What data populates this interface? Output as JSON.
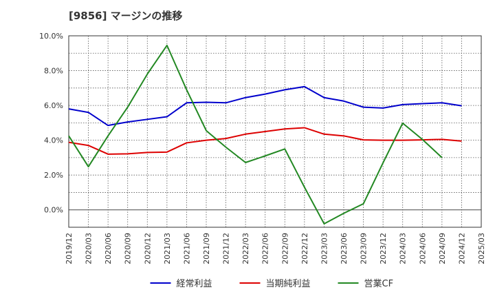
{
  "chart_data": {
    "type": "line",
    "title": "[9856]  マージンの推移",
    "x": [
      "2019/12",
      "2020/03",
      "2020/06",
      "2020/09",
      "2020/12",
      "2021/03",
      "2021/06",
      "2021/09",
      "2021/12",
      "2022/03",
      "2022/06",
      "2022/09",
      "2022/12",
      "2023/03",
      "2023/06",
      "2023/09",
      "2023/12",
      "2024/03",
      "2024/06",
      "2024/09",
      "2024/12",
      "2025/03"
    ],
    "ylim": [
      -1.0,
      10.0
    ],
    "yticks": [
      0.0,
      2.0,
      4.0,
      6.0,
      8.0,
      10.0
    ],
    "ytick_labels": [
      "0.0%",
      "2.0%",
      "4.0%",
      "6.0%",
      "8.0%",
      "10.0%"
    ],
    "grid": true,
    "legend_position": "bottom",
    "series": [
      {
        "name": "経常利益",
        "color": "#0000cc",
        "values": [
          5.8,
          5.6,
          4.85,
          5.05,
          5.2,
          5.35,
          6.15,
          6.18,
          6.15,
          6.45,
          6.65,
          6.9,
          7.08,
          6.45,
          6.25,
          5.9,
          5.85,
          6.05,
          6.1,
          6.15,
          5.98,
          null
        ]
      },
      {
        "name": "当期純利益",
        "color": "#dd0000",
        "values": [
          3.88,
          3.7,
          3.2,
          3.22,
          3.3,
          3.32,
          3.85,
          4.0,
          4.1,
          4.35,
          4.5,
          4.65,
          4.72,
          4.35,
          4.25,
          4.02,
          4.0,
          4.0,
          4.02,
          4.05,
          3.95,
          null
        ]
      },
      {
        "name": "営業CF",
        "color": "#228822",
        "values": [
          4.25,
          2.48,
          4.25,
          5.9,
          7.8,
          9.45,
          6.9,
          4.55,
          3.6,
          2.72,
          3.1,
          3.5,
          1.3,
          -0.8,
          -0.2,
          0.35,
          2.7,
          4.98,
          4.05,
          3.0,
          null,
          null
        ]
      }
    ]
  }
}
